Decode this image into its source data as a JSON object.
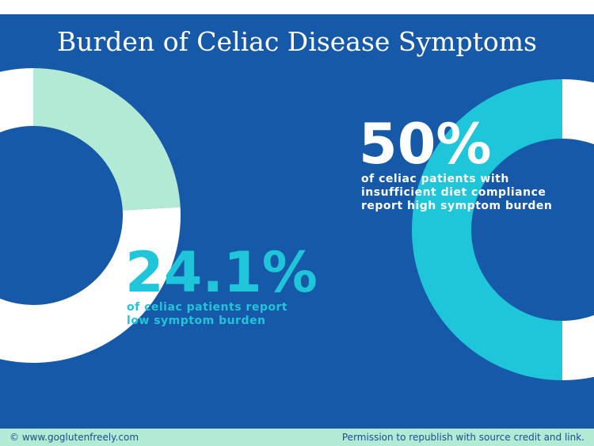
{
  "header": {
    "title": "Burden of Celiac Disease Symptoms"
  },
  "chart_data": [
    {
      "type": "donut",
      "values": [
        24.1,
        75.9
      ],
      "value_labels": [
        "24.1%",
        null
      ],
      "colors": [
        "#b3ead6",
        "#ffffff"
      ],
      "caption": [
        "of celiac patients report",
        "low symptom burden"
      ]
    },
    {
      "type": "donut",
      "values": [
        50,
        50
      ],
      "value_labels": [
        "50%",
        null
      ],
      "colors": [
        "#1fc6d9",
        "#ffffff"
      ],
      "caption": [
        "of celiac patients with",
        "insufficient diet compliance",
        "report high symptom burden"
      ]
    }
  ],
  "footer": {
    "left": "© www.goglutenfreely.com",
    "right": "Permission to republish with source credit and link."
  }
}
